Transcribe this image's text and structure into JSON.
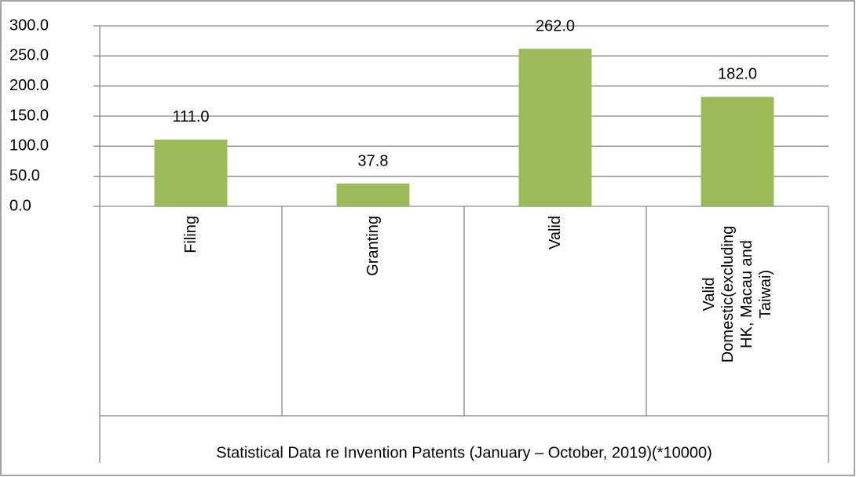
{
  "chart_data": {
    "type": "bar",
    "x_label": "Statistical Data re Invention Patents (January – October, 2019)(*10000)",
    "categories": [
      "Filing",
      "Granting",
      "Valid",
      "Valid Domestic(excluding HK, Macau and Taiwai)"
    ],
    "values": [
      111.0,
      37.8,
      262.0,
      182.0
    ],
    "value_labels": [
      "111.0",
      "37.8",
      "262.0",
      "182.0"
    ],
    "color": "#9bbb59",
    "ylim": [
      0,
      300
    ],
    "yticks": [
      {
        "value": 0,
        "label": "0.0"
      },
      {
        "value": 50,
        "label": "50.0"
      },
      {
        "value": 100,
        "label": "100.0"
      },
      {
        "value": 150,
        "label": "150.0"
      },
      {
        "value": 200,
        "label": "200.0"
      },
      {
        "value": 250,
        "label": "250.0"
      },
      {
        "value": 300,
        "label": "300.0"
      }
    ],
    "grid": true
  }
}
